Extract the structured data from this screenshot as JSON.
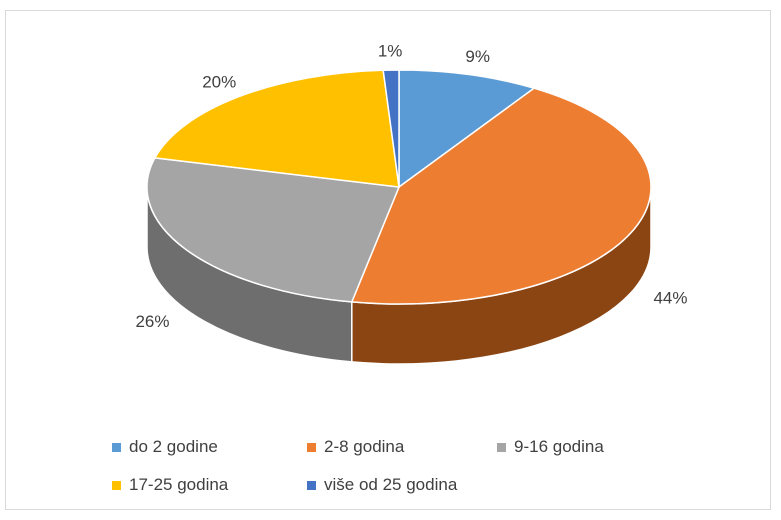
{
  "chart_data": {
    "type": "pie",
    "title": "",
    "categories": [
      "do 2 godine",
      "2-8 godina",
      "9-16 godina",
      "17-25 godina",
      "više od 25 godina"
    ],
    "values": [
      9,
      44,
      26,
      20,
      1
    ],
    "value_labels": [
      "9%",
      "44%",
      "26%",
      "20%",
      "1%"
    ],
    "colors": [
      "#5b9bd5",
      "#ed7d31",
      "#a5a5a5",
      "#ffc000",
      "#4472c4"
    ],
    "side_colors": [
      "#2e5c87",
      "#8b4513",
      "#6e6e6e",
      "#a07800",
      "#2a4a80"
    ],
    "style": "3d",
    "legend_position": "bottom"
  }
}
